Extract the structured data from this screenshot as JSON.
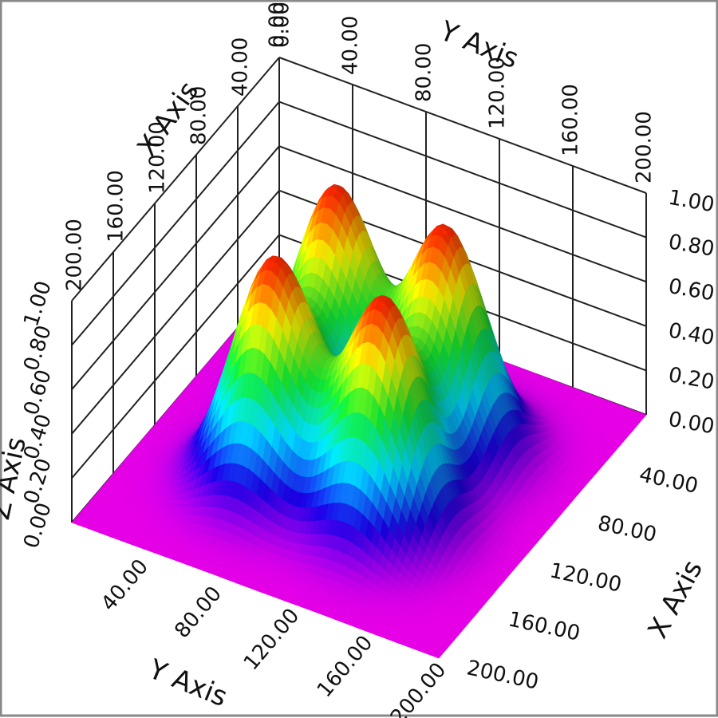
{
  "chart_data": {
    "type": "surface",
    "x_label": "X Axis",
    "y_label": "Y Axis",
    "z_label": "Z Axis",
    "xlim": [
      0,
      200
    ],
    "ylim": [
      0,
      200
    ],
    "zlim": [
      0,
      1
    ],
    "xticks": [
      {
        "value": 0,
        "label": "0.00"
      },
      {
        "value": 40,
        "label": "40.00"
      },
      {
        "value": 80,
        "label": "80.00"
      },
      {
        "value": 120,
        "label": "120.00"
      },
      {
        "value": 160,
        "label": "160.00"
      },
      {
        "value": 200,
        "label": "200.00"
      }
    ],
    "yticks": [
      {
        "value": 0,
        "label": "0.00"
      },
      {
        "value": 40,
        "label": "40.00"
      },
      {
        "value": 80,
        "label": "80.00"
      },
      {
        "value": 120,
        "label": "120.00"
      },
      {
        "value": 160,
        "label": "160.00"
      },
      {
        "value": 200,
        "label": "200.00"
      }
    ],
    "zticks": [
      {
        "value": 0,
        "label": "0.00"
      },
      {
        "value": 0.2,
        "label": "0.20"
      },
      {
        "value": 0.4,
        "label": "0.40"
      },
      {
        "value": 0.6,
        "label": "0.60"
      },
      {
        "value": 0.8,
        "label": "0.80"
      },
      {
        "value": 1,
        "label": "1.00"
      }
    ],
    "peaks": [
      {
        "x": 70,
        "y": 70,
        "height": 1,
        "sigma": 20
      },
      {
        "x": 70,
        "y": 130,
        "height": 1,
        "sigma": 20
      },
      {
        "x": 130,
        "y": 70,
        "height": 1,
        "sigma": 20
      },
      {
        "x": 130,
        "y": 130,
        "height": 1,
        "sigma": 20
      }
    ],
    "colormap": [
      "#ff00ff",
      "#1a00e0",
      "#00d8ff",
      "#10e030",
      "#f0f000",
      "#ff2a00"
    ],
    "grid": true
  }
}
